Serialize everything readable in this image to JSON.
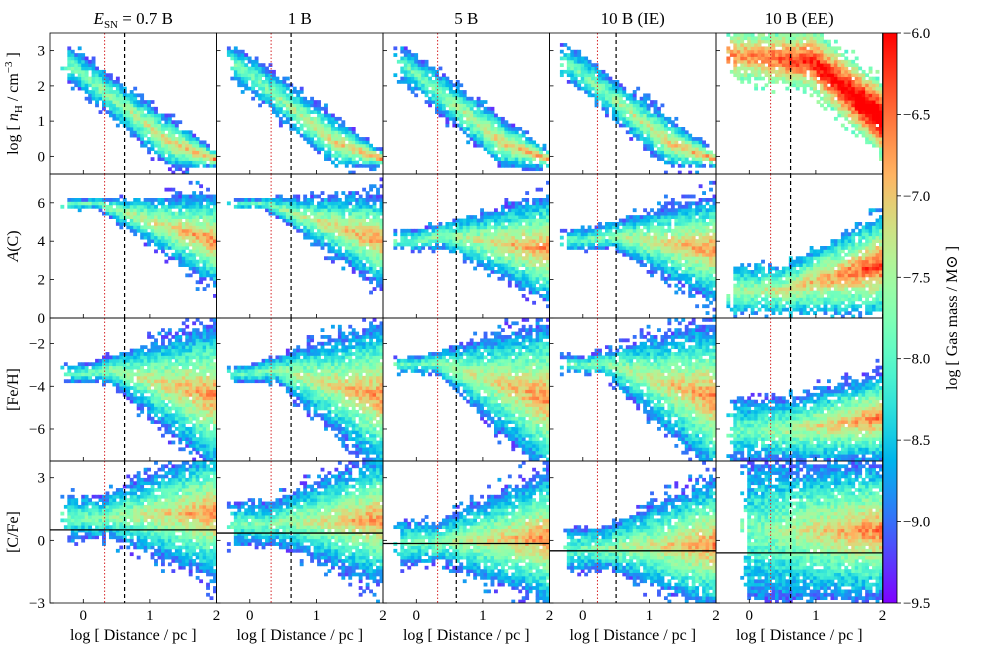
{
  "chart_data": {
    "type": "heatmap",
    "description_free": true,
    "columns": [
      {
        "title": "E_SN = 0.7 B",
        "title_parts": [
          "E",
          "SN",
          " = 0.7 B"
        ],
        "r_dashed": 0.62,
        "r_dotted": 0.32,
        "cfe_line": 0.5,
        "fill_scale": 1.0
      },
      {
        "title": "1 B",
        "title_parts": [
          "",
          "",
          "1 B"
        ],
        "r_dashed": 0.62,
        "r_dotted": 0.32,
        "cfe_line": 0.35,
        "fill_scale": 0.97
      },
      {
        "title": "5 B",
        "title_parts": [
          "",
          "",
          "5 B"
        ],
        "r_dashed": 0.6,
        "r_dotted": 0.32,
        "cfe_line": -0.15,
        "fill_scale": 1.03
      },
      {
        "title": "10 B (IE)",
        "title_parts": [
          "",
          "",
          "10 B (IE)"
        ],
        "r_dashed": 0.5,
        "r_dotted": 0.22,
        "cfe_line": -0.5,
        "fill_scale": 1.0
      },
      {
        "title": "10 B (EE)",
        "title_parts": [
          "",
          "",
          "10 B (EE)"
        ],
        "r_dashed": 0.62,
        "r_dotted": 0.32,
        "cfe_line": -0.6,
        "fill_scale": 1.1
      }
    ],
    "rows": [
      {
        "key": "nH",
        "ylabel": "log [ n_H / cm^-3 ]",
        "ylim": [
          -0.5,
          3.5
        ],
        "yticks": [
          0,
          1,
          2,
          3
        ],
        "yticklabels": [
          "0",
          "1",
          "2",
          "3"
        ]
      },
      {
        "key": "AC",
        "ylabel": "A(C)",
        "ylim": [
          0,
          7.5
        ],
        "yticks": [
          0,
          2,
          4,
          6
        ],
        "yticklabels": [
          "0",
          "2",
          "4",
          "6"
        ]
      },
      {
        "key": "FeH",
        "ylabel": "[Fe/H]",
        "ylim": [
          -7.5,
          -0.8
        ],
        "yticks": [
          -6,
          -4,
          -2
        ],
        "yticklabels": [
          "−6",
          "−4",
          "−2"
        ]
      },
      {
        "key": "CFe",
        "ylabel": "[C/Fe]",
        "ylim": [
          -3,
          3.8
        ],
        "yticks": [
          -3,
          0,
          3
        ],
        "yticklabels": [
          "−3",
          "0",
          "3"
        ]
      }
    ],
    "xlim": [
      -0.5,
      2.0
    ],
    "xticks": [
      0,
      1,
      2
    ],
    "xticklabels": [
      "0",
      "1",
      "2"
    ],
    "xlabel": "log [ Distance / pc ]",
    "colorbar": {
      "label": "log [ Gas mass / M⊙ ]",
      "range": [
        -9.5,
        -6.0
      ],
      "ticks": [
        -6.0,
        -6.5,
        -7.0,
        -7.5,
        -8.0,
        -8.5,
        -9.0,
        -9.5
      ],
      "ticklabels": [
        "−6.0",
        "−6.5",
        "−7.0",
        "−7.5",
        "−8.0",
        "−8.5",
        "−9.0",
        "−9.5"
      ],
      "colormap": "rainbow"
    }
  }
}
